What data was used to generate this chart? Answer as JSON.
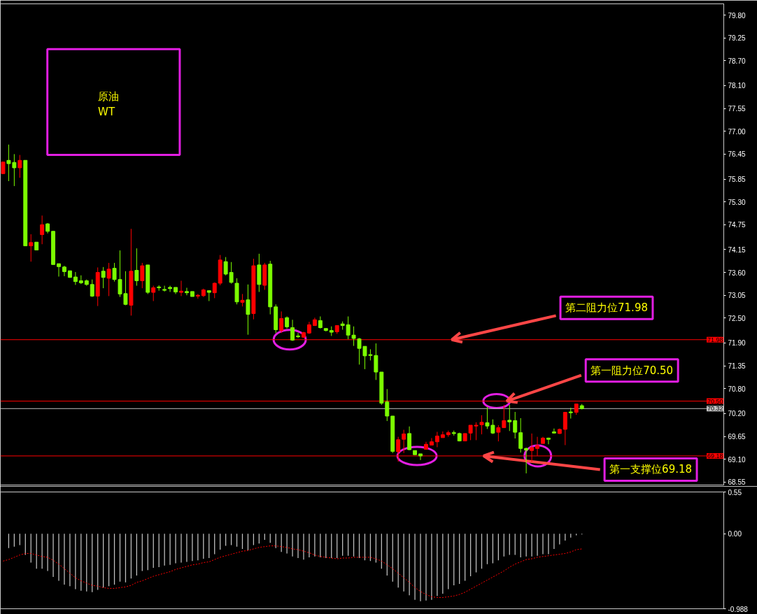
{
  "chart_data": [
    {
      "type": "candlestick",
      "title": "原油",
      "subtitle": "WT",
      "categories": [
        null,
        null,
        null,
        null,
        null,
        null,
        null,
        null,
        null,
        null,
        null,
        null,
        null,
        null,
        null,
        null,
        null,
        null,
        null,
        null,
        null,
        null,
        null,
        null,
        null,
        null,
        null,
        null,
        null,
        null,
        null,
        null,
        null,
        null,
        null,
        null,
        null,
        null,
        null,
        null,
        null,
        null,
        null,
        null,
        null,
        null,
        null,
        null,
        null,
        null,
        null,
        null,
        null,
        null,
        null,
        null,
        null,
        null,
        null,
        null,
        null,
        null,
        null,
        null,
        null,
        null,
        null,
        null,
        null,
        null,
        null,
        null,
        null,
        null,
        null,
        null,
        null,
        null,
        null,
        null,
        null,
        null,
        null,
        null,
        null,
        null,
        null,
        null,
        null,
        null,
        null,
        null,
        null,
        null,
        null,
        null,
        null,
        null,
        null,
        null,
        null,
        null,
        null,
        null,
        null,
        null,
        null,
        null,
        null,
        null,
        null,
        null,
        null,
        null,
        null,
        null,
        null,
        null,
        null,
        null,
        null,
        null,
        null,
        null,
        null,
        null,
        null,
        null,
        null,
        null
      ],
      "ohlc": [
        [
          75.98,
          76.26,
          75.98,
          76.26
        ],
        [
          76.3,
          76.68,
          75.8,
          76.22
        ],
        [
          76.25,
          76.45,
          75.68,
          76.12
        ],
        [
          76.12,
          76.43,
          75.88,
          76.3
        ],
        [
          76.3,
          76.3,
          74.24,
          74.24
        ],
        [
          74.24,
          74.52,
          73.86,
          74.32
        ],
        [
          74.33,
          74.33,
          74.14,
          74.14
        ],
        [
          74.51,
          74.97,
          74.28,
          74.75
        ],
        [
          74.77,
          74.79,
          74.54,
          74.59
        ],
        [
          74.59,
          74.6,
          73.79,
          73.79
        ],
        [
          73.81,
          73.81,
          73.5,
          73.74
        ],
        [
          73.73,
          73.76,
          73.51,
          73.62
        ],
        [
          73.64,
          73.64,
          73.47,
          73.48
        ],
        [
          73.49,
          73.61,
          73.3,
          73.38
        ],
        [
          73.4,
          73.53,
          73.32,
          73.35
        ],
        [
          73.4,
          73.43,
          73.28,
          73.31
        ],
        [
          73.31,
          73.43,
          73.01,
          73.03
        ],
        [
          73.03,
          73.72,
          72.79,
          73.6
        ],
        [
          73.63,
          73.73,
          73.22,
          73.48
        ],
        [
          73.46,
          73.83,
          73.03,
          73.68
        ],
        [
          73.7,
          73.83,
          73.38,
          73.43
        ],
        [
          73.43,
          74.13,
          73.01,
          73.08
        ],
        [
          73.09,
          73.63,
          72.81,
          72.83
        ],
        [
          72.81,
          74.65,
          72.56,
          73.63
        ],
        [
          73.65,
          74.18,
          73.28,
          73.4
        ],
        [
          73.4,
          73.83,
          73.22,
          73.76
        ],
        [
          73.78,
          73.78,
          73.08,
          73.12
        ],
        [
          73.12,
          73.28,
          72.91,
          73.23
        ],
        [
          73.25,
          73.29,
          73.16,
          73.23
        ],
        [
          73.19,
          73.28,
          73.14,
          73.17
        ],
        [
          73.24,
          73.28,
          73.13,
          73.21
        ],
        [
          73.24,
          73.24,
          73.08,
          73.13
        ],
        [
          73.12,
          73.4,
          73.03,
          73.15
        ],
        [
          73.14,
          73.23,
          73.05,
          73.11
        ],
        [
          73.14,
          73.14,
          73.02,
          73.02
        ],
        [
          73.03,
          73.08,
          72.97,
          73.05
        ],
        [
          73.04,
          73.21,
          73.01,
          73.18
        ],
        [
          73.16,
          73.16,
          72.91,
          73.12
        ],
        [
          73.11,
          73.36,
          72.98,
          73.34
        ],
        [
          73.34,
          74.02,
          73.29,
          73.9
        ],
        [
          73.86,
          73.97,
          73.53,
          73.56
        ],
        [
          73.6,
          73.85,
          73.33,
          73.36
        ],
        [
          73.34,
          73.46,
          72.83,
          72.89
        ],
        [
          72.88,
          73.08,
          72.78,
          72.93
        ],
        [
          72.94,
          73.31,
          72.1,
          72.59
        ],
        [
          72.61,
          73.93,
          72.47,
          73.76
        ],
        [
          73.78,
          74.05,
          73.13,
          73.31
        ],
        [
          73.29,
          73.83,
          73.18,
          73.78
        ],
        [
          73.8,
          73.88,
          72.59,
          72.77
        ],
        [
          72.77,
          72.83,
          72.14,
          72.22
        ],
        [
          72.2,
          72.66,
          72.14,
          72.49
        ],
        [
          72.51,
          72.54,
          72.25,
          72.29
        ],
        [
          72.27,
          72.46,
          71.95,
          71.97
        ],
        [
          72.07,
          72.14,
          72.02,
          72.05
        ],
        [
          72.04,
          72.17,
          72.02,
          72.15
        ],
        [
          72.14,
          72.41,
          72.12,
          72.34
        ],
        [
          72.32,
          72.51,
          72.31,
          72.46
        ],
        [
          72.44,
          72.54,
          72.25,
          72.27
        ],
        [
          72.25,
          72.25,
          72.18,
          72.2
        ],
        [
          72.2,
          72.3,
          72.07,
          72.16
        ],
        [
          72.17,
          72.32,
          72.12,
          72.32
        ],
        [
          72.36,
          72.42,
          72.22,
          72.32
        ],
        [
          72.34,
          72.54,
          71.99,
          72.09
        ],
        [
          72.09,
          72.3,
          71.83,
          72.01
        ],
        [
          72.0,
          72.02,
          71.38,
          71.77
        ],
        [
          71.82,
          71.82,
          71.27,
          71.59
        ],
        [
          71.62,
          71.75,
          71.48,
          71.6
        ],
        [
          71.6,
          71.89,
          71.01,
          71.2
        ],
        [
          71.2,
          71.2,
          70.41,
          70.45
        ],
        [
          70.48,
          70.79,
          70.02,
          70.14
        ],
        [
          70.14,
          70.14,
          69.25,
          69.29
        ],
        [
          69.28,
          69.64,
          69.04,
          69.57
        ],
        [
          69.58,
          69.81,
          69.25,
          69.71
        ],
        [
          69.72,
          69.89,
          69.32,
          69.33
        ],
        [
          69.31,
          69.31,
          69.21,
          69.21
        ],
        [
          69.23,
          69.23,
          69.08,
          69.18
        ],
        [
          69.34,
          69.52,
          69.34,
          69.46
        ],
        [
          69.44,
          69.61,
          69.44,
          69.52
        ],
        [
          69.52,
          69.76,
          69.39,
          69.66
        ],
        [
          69.62,
          69.77,
          69.62,
          69.69
        ],
        [
          69.69,
          69.79,
          69.64,
          69.74
        ],
        [
          69.74,
          69.79,
          69.67,
          69.72
        ],
        [
          69.72,
          69.74,
          69.53,
          69.54
        ],
        [
          69.54,
          69.72,
          69.54,
          69.72
        ],
        [
          69.73,
          69.92,
          69.56,
          69.92
        ],
        [
          69.9,
          69.99,
          69.56,
          69.92
        ],
        [
          69.93,
          70.16,
          69.7,
          69.99
        ],
        [
          69.98,
          70.36,
          69.83,
          69.9
        ],
        [
          69.92,
          70.06,
          69.71,
          69.73
        ],
        [
          69.75,
          69.92,
          69.53,
          69.86
        ],
        [
          69.86,
          70.41,
          69.86,
          70.03
        ],
        [
          70.04,
          70.41,
          69.78,
          70.0
        ],
        [
          70.03,
          70.24,
          69.6,
          69.75
        ],
        [
          69.74,
          70.09,
          69.26,
          69.36
        ],
        [
          69.36,
          69.38,
          68.76,
          69.32
        ],
        [
          69.31,
          69.72,
          69.04,
          69.38
        ],
        [
          69.36,
          69.64,
          69.18,
          69.43
        ],
        [
          69.48,
          69.64,
          69.48,
          69.61
        ],
        [
          69.61,
          69.62,
          69.46,
          69.58
        ],
        [
          69.76,
          69.84,
          69.72,
          69.73
        ],
        [
          69.72,
          69.84,
          69.71,
          69.82
        ],
        [
          69.82,
          70.24,
          69.44,
          70.23
        ],
        [
          70.24,
          70.34,
          70.08,
          70.22
        ],
        [
          70.23,
          70.43,
          70.17,
          70.43
        ],
        [
          70.39,
          70.43,
          70.3,
          70.32
        ],
        null,
        null,
        null,
        null,
        null,
        null,
        null,
        null,
        null,
        null,
        null,
        null,
        null,
        null,
        null,
        null,
        null,
        null,
        null,
        null,
        null,
        null,
        null,
        null,
        null
      ],
      "colors": [
        "#ff0000",
        "#7cfc00",
        "#7cfc00",
        "#ff0000",
        "#7cfc00",
        "#ff0000",
        "#7cfc00",
        "#ff0000",
        "#7cfc00",
        "#7cfc00",
        "#7cfc00",
        "#7cfc00",
        "#7cfc00",
        "#7cfc00",
        "#7cfc00",
        "#7cfc00",
        "#7cfc00",
        "#ff0000",
        "#7cfc00",
        "#ff0000",
        "#7cfc00",
        "#7cfc00",
        "#7cfc00",
        "#ff0000",
        "#7cfc00",
        "#ff0000",
        "#7cfc00",
        "#ff0000",
        "#7cfc00",
        "#7cfc00",
        "#7cfc00",
        "#7cfc00",
        "#ff0000",
        "#7cfc00",
        "#7cfc00",
        "#ff0000",
        "#ff0000",
        "#7cfc00",
        "#ff0000",
        "#ff0000",
        "#7cfc00",
        "#7cfc00",
        "#7cfc00",
        "#ff0000",
        "#7cfc00",
        "#ff0000",
        "#7cfc00",
        "#ff0000",
        "#7cfc00",
        "#7cfc00",
        "#ff0000",
        "#7cfc00",
        "#7cfc00",
        "#7cfc00",
        "#ff0000",
        "#ff0000",
        "#ff0000",
        "#7cfc00",
        "#7cfc00",
        "#7cfc00",
        "#ff0000",
        "#7cfc00",
        "#7cfc00",
        "#7cfc00",
        "#7cfc00",
        "#7cfc00",
        "#7cfc00",
        "#7cfc00",
        "#7cfc00",
        "#7cfc00",
        "#7cfc00",
        "#ff0000",
        "#ff0000",
        "#7cfc00",
        "#7cfc00",
        "#7cfc00",
        "#ff0000",
        "#ff0000",
        "#ff0000",
        "#ff0000",
        "#ff0000",
        "#7cfc00",
        "#7cfc00",
        "#ff0000",
        "#ff0000",
        "#ff0000",
        "#ff0000",
        "#7cfc00",
        "#7cfc00",
        "#ff0000",
        "#ff0000",
        "#7cfc00",
        "#7cfc00",
        "#7cfc00",
        "#7cfc00",
        "#ff0000",
        "#ff0000",
        "#ff0000",
        "#7cfc00",
        "#7cfc00",
        "#ff0000",
        "#ff0000",
        "#7cfc00",
        "#ff0000",
        "#7cfc00",
        null,
        null,
        null,
        null,
        null,
        null,
        null,
        null,
        null,
        null,
        null,
        null,
        null,
        null,
        null,
        null,
        null,
        null,
        null,
        null,
        null,
        null,
        null,
        null,
        null
      ],
      "ylim": [
        68.48,
        80.07
      ],
      "yticks": [
        {
          "value": 79.8,
          "label": "79.80"
        },
        79.25,
        {
          "value": 78.7,
          "label": "78.70"
        },
        {
          "value": 78.1,
          "label": "78.10"
        },
        77.55,
        {
          "value": 77,
          "label": "77.00"
        },
        76.45,
        75.85,
        {
          "value": 75.3,
          "label": "75.30"
        },
        74.75,
        74.15,
        {
          "value": 73.6,
          "label": "73.60"
        },
        73.05,
        {
          "value": 72.5,
          "label": "72.50"
        },
        {
          "value": 71.9,
          "label": "71.90"
        },
        71.35,
        {
          "value": 70.8,
          "label": "70.80"
        },
        {
          "value": 70.2,
          "label": "70.20"
        },
        69.65,
        {
          "value": 69.1,
          "label": "69.10"
        },
        68.55
      ],
      "tick_labels": "y",
      "ref_lines": [
        {
          "axis": "y",
          "value": 71.98,
          "label": "71.98",
          "color": "#ff0000"
        },
        {
          "axis": "y",
          "value": 70.5,
          "label": "70.50",
          "color": "#ff0000"
        },
        {
          "axis": "y",
          "value": 70.32,
          "label": "70.32",
          "color": "#c0c0c0"
        },
        {
          "axis": "y",
          "value": 69.18,
          "label": "69.18",
          "color": "#ff0000"
        }
      ],
      "annotations": [
        {
          "text": "第二阻力位71.98",
          "y": 71.98
        },
        {
          "text": "第一阻力位70.50",
          "y": 70.5
        },
        {
          "text": "第一支撑位69.18",
          "y": 69.18
        }
      ]
    },
    {
      "type": "bar",
      "categories": [
        null,
        null,
        null,
        null,
        null,
        null,
        null,
        null,
        null,
        null,
        null,
        null,
        null,
        null,
        null,
        null,
        null,
        null,
        null,
        null,
        null,
        null,
        null,
        null,
        null,
        null,
        null,
        null,
        null,
        null,
        null,
        null,
        null,
        null,
        null,
        null,
        null,
        null,
        null,
        null,
        null,
        null,
        null,
        null,
        null,
        null,
        null,
        null,
        null,
        null,
        null,
        null,
        null,
        null,
        null,
        null,
        null,
        null,
        null,
        null,
        null,
        null,
        null,
        null,
        null,
        null,
        null,
        null,
        null,
        null,
        null,
        null,
        null,
        null,
        null,
        null,
        null,
        null,
        null,
        null,
        null,
        null,
        null,
        null,
        null,
        null,
        null,
        null,
        null,
        null,
        null,
        null,
        null,
        null,
        null,
        null,
        null,
        null,
        null,
        null,
        null,
        null,
        null,
        null,
        null,
        null,
        null,
        null,
        null,
        null,
        null,
        null,
        null,
        null,
        null,
        null,
        null,
        null,
        null,
        null,
        null,
        null,
        null,
        null,
        null,
        null,
        null,
        null,
        null,
        null
      ],
      "series": [
        {
          "color": "#c0c0c0",
          "values": [
            null,
            -0.19,
            -0.17,
            -0.15,
            -0.28,
            -0.38,
            -0.46,
            -0.46,
            -0.49,
            -0.57,
            -0.62,
            -0.67,
            -0.69,
            -0.73,
            -0.75,
            -0.76,
            -0.77,
            -0.74,
            -0.71,
            -0.69,
            -0.67,
            -0.63,
            -0.64,
            -0.59,
            -0.55,
            -0.49,
            -0.48,
            -0.45,
            -0.44,
            -0.42,
            -0.41,
            -0.39,
            -0.38,
            -0.37,
            -0.36,
            -0.35,
            -0.33,
            -0.32,
            -0.27,
            -0.21,
            -0.16,
            -0.15,
            -0.17,
            -0.2,
            -0.22,
            -0.15,
            -0.13,
            -0.08,
            -0.12,
            -0.19,
            -0.24,
            -0.26,
            -0.3,
            -0.32,
            -0.34,
            -0.31,
            -0.3,
            -0.31,
            -0.32,
            -0.32,
            -0.32,
            -0.29,
            -0.29,
            -0.3,
            -0.32,
            -0.35,
            -0.36,
            -0.38,
            -0.46,
            -0.55,
            -0.63,
            -0.71,
            -0.76,
            -0.81,
            -0.87,
            -0.89,
            -0.88,
            -0.87,
            -0.82,
            -0.79,
            -0.73,
            -0.68,
            -0.66,
            -0.62,
            -0.56,
            -0.51,
            -0.46,
            -0.4,
            -0.39,
            -0.35,
            -0.3,
            -0.28,
            -0.28,
            -0.31,
            -0.3,
            -0.3,
            -0.29,
            -0.27,
            -0.27,
            -0.2,
            -0.14,
            -0.09,
            -0.05,
            -0.02,
            -0.01,
            null,
            null,
            null,
            null,
            null,
            null,
            null,
            null,
            null,
            null,
            null,
            null,
            null,
            null,
            null,
            null,
            null,
            null,
            null,
            null,
            null,
            null,
            null,
            null,
            null
          ]
        },
        {
          "type": "line",
          "color": "#ff0000",
          "line_style": "dotted",
          "values": [
            -0.36,
            -0.34,
            -0.31,
            -0.28,
            -0.26,
            -0.26,
            -0.28,
            -0.3,
            -0.31,
            -0.35,
            -0.4,
            -0.46,
            -0.52,
            -0.58,
            -0.62,
            -0.65,
            -0.68,
            -0.69,
            -0.71,
            -0.72,
            -0.72,
            -0.71,
            -0.7,
            -0.68,
            -0.64,
            -0.62,
            -0.59,
            -0.56,
            -0.54,
            -0.52,
            -0.5,
            -0.47,
            -0.45,
            -0.43,
            -0.41,
            -0.4,
            -0.38,
            -0.37,
            -0.34,
            -0.31,
            -0.29,
            -0.27,
            -0.25,
            -0.23,
            -0.22,
            -0.2,
            -0.18,
            -0.17,
            -0.16,
            -0.16,
            -0.17,
            -0.18,
            -0.2,
            -0.21,
            -0.23,
            -0.25,
            -0.28,
            -0.3,
            -0.31,
            -0.32,
            -0.33,
            -0.32,
            -0.32,
            -0.31,
            -0.31,
            -0.31,
            -0.31,
            -0.33,
            -0.36,
            -0.41,
            -0.46,
            -0.52,
            -0.58,
            -0.64,
            -0.71,
            -0.76,
            -0.8,
            -0.83,
            -0.84,
            -0.84,
            -0.83,
            -0.82,
            -0.8,
            -0.77,
            -0.73,
            -0.69,
            -0.65,
            -0.61,
            -0.57,
            -0.53,
            -0.49,
            -0.44,
            -0.4,
            -0.37,
            -0.34,
            -0.33,
            -0.31,
            -0.3,
            -0.29,
            -0.28,
            -0.27,
            -0.26,
            -0.24,
            -0.21,
            -0.2,
            null,
            null,
            null,
            null,
            null,
            null,
            null,
            null,
            null,
            null,
            null,
            null,
            null,
            null,
            null,
            null,
            null,
            null,
            null,
            null,
            null,
            null,
            null,
            null,
            null
          ]
        }
      ],
      "ylim": [
        -0.988,
        0.55
      ],
      "yticks": [
        0.55,
        {
          "value": 0,
          "label": "0.00"
        },
        -0.988
      ],
      "tick_labels": "y"
    }
  ]
}
